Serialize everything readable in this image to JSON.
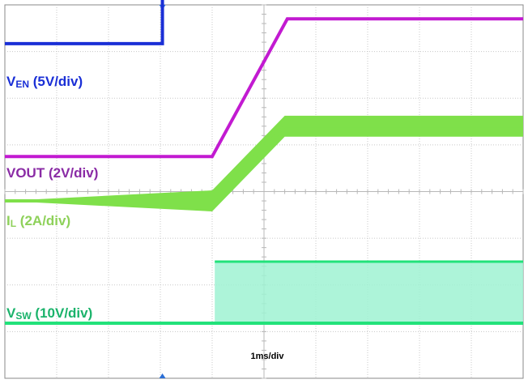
{
  "chart_data": {
    "type": "line",
    "grid": true,
    "divisions": {
      "x": 10,
      "y": 8
    },
    "x_scale_label": "1ms/div",
    "xlim": [
      0,
      10
    ],
    "ylim": [
      0,
      8
    ],
    "colors": {
      "ven": "#1a2fd6",
      "vout": "#c21ad1",
      "il": "#7fe04a",
      "vsw": "#22e27a",
      "vsw_fill": "#9ff2d2",
      "grid": "#c8c8c8",
      "frame": "#8a8a8a",
      "marker": "#2b6fd6"
    },
    "channel_labels": [
      {
        "id": "ven",
        "main": "V",
        "sub": "EN",
        "rest": " (5V/div)",
        "color": "#1a2fd6"
      },
      {
        "id": "vout",
        "main": "VOUT",
        "sub": "",
        "rest": " (2V/div)",
        "color": "#8a2ba5"
      },
      {
        "id": "il",
        "main": "I",
        "sub": "L",
        "rest": " (2A/div)",
        "color": "#8ed15a"
      },
      {
        "id": "vsw",
        "main": "V",
        "sub": "SW",
        "rest": " (10V/div)",
        "color": "#1bb36b"
      }
    ],
    "series": [
      {
        "id": "ven",
        "x": [
          0,
          3.04,
          3.04,
          10
        ],
        "y": [
          7.17,
          7.17,
          8.15,
          8.15
        ]
      },
      {
        "id": "vout",
        "x": [
          0,
          4.0,
          5.45,
          10
        ],
        "y": [
          4.75,
          4.75,
          7.7,
          7.7
        ]
      },
      {
        "id": "il",
        "x": [
          0,
          4.0,
          5.4,
          10
        ],
        "y": [
          3.8,
          3.8,
          5.4,
          5.4
        ],
        "ripple": 0.45
      },
      {
        "id": "vsw",
        "x": [
          0,
          10
        ],
        "y": [
          1.18,
          1.18
        ],
        "switching": {
          "x_start": 4.05,
          "high": 2.5
        }
      }
    ]
  }
}
